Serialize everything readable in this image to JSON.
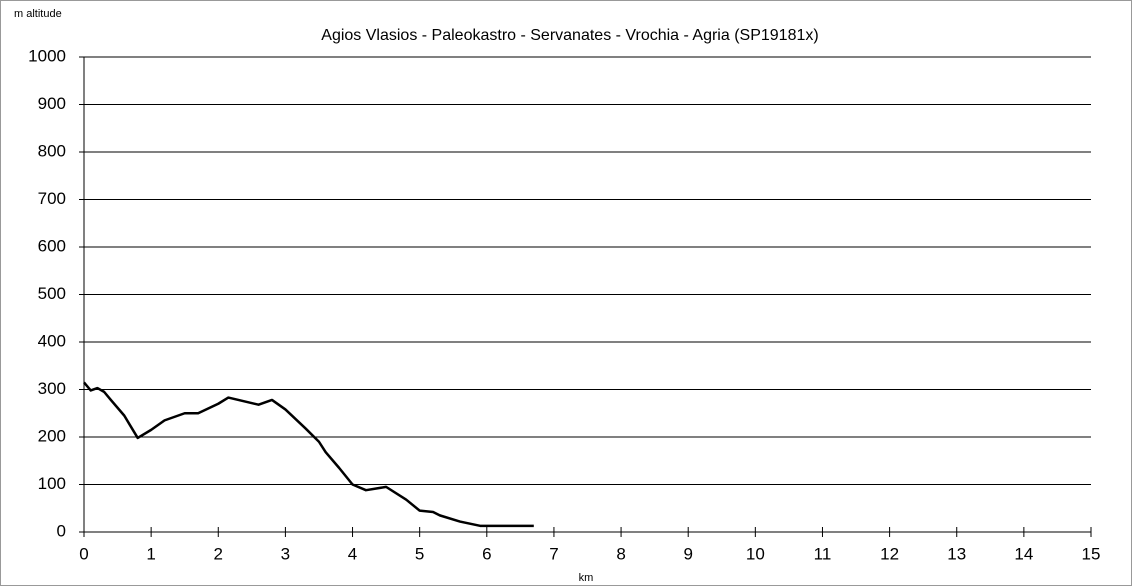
{
  "chart_data": {
    "type": "line",
    "title": "Agios Vlasios - Paleokastro - Servanates - Vrochia - Agria (SP19181x)",
    "y_label": "m altitude",
    "x_label": "km",
    "x": [
      0,
      0.1,
      0.2,
      0.3,
      0.4,
      0.6,
      0.8,
      1.0,
      1.2,
      1.5,
      1.7,
      2.0,
      2.15,
      2.3,
      2.6,
      2.8,
      3.0,
      3.3,
      3.5,
      3.6,
      3.8,
      4.0,
      4.2,
      4.5,
      4.8,
      5.0,
      5.2,
      5.3,
      5.6,
      5.9,
      6.2,
      6.7
    ],
    "series": [
      {
        "name": "altitude",
        "color": "#000000",
        "values": [
          315,
          298,
          303,
          295,
          278,
          245,
          198,
          215,
          235,
          250,
          250,
          270,
          283,
          278,
          268,
          278,
          258,
          218,
          190,
          168,
          135,
          100,
          88,
          95,
          68,
          45,
          42,
          35,
          22,
          13,
          13,
          13
        ]
      }
    ],
    "xlim": [
      0,
      15
    ],
    "xticks": [
      0,
      1,
      2,
      3,
      4,
      5,
      6,
      7,
      8,
      9,
      10,
      11,
      12,
      13,
      14,
      15
    ],
    "ylim": [
      0,
      1000
    ],
    "yticks": [
      0,
      100,
      200,
      300,
      400,
      500,
      600,
      700,
      800,
      900,
      1000
    ],
    "grid": true
  }
}
